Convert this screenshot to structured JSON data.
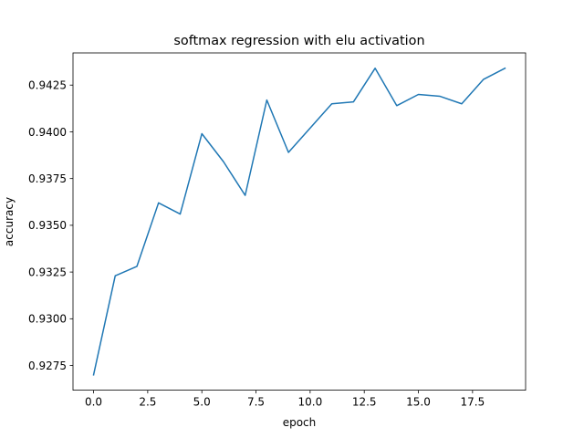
{
  "chart_data": {
    "type": "line",
    "title": "softmax regression with elu activation",
    "xlabel": "epoch",
    "ylabel": "accuracy",
    "xlim": [
      -0.95,
      19.95
    ],
    "ylim": [
      0.92618,
      0.94422
    ],
    "xticks": [
      0.0,
      2.5,
      5.0,
      7.5,
      10.0,
      12.5,
      15.0,
      17.5
    ],
    "xtick_labels": [
      "0.0",
      "2.5",
      "5.0",
      "7.5",
      "10.0",
      "12.5",
      "15.0",
      "17.5"
    ],
    "yticks": [
      0.9275,
      0.93,
      0.9325,
      0.935,
      0.9375,
      0.94,
      0.9425
    ],
    "ytick_labels": [
      "0.9275",
      "0.9300",
      "0.9325",
      "0.9350",
      "0.9375",
      "0.9400",
      "0.9425"
    ],
    "grid": false,
    "series": [
      {
        "color": "#1f77b4",
        "x": [
          0,
          1,
          2,
          3,
          4,
          5,
          6,
          7,
          8,
          9,
          10,
          11,
          12,
          13,
          14,
          15,
          16,
          17,
          18,
          19
        ],
        "values": [
          0.927,
          0.9323,
          0.9328,
          0.9362,
          0.9356,
          0.9399,
          0.9384,
          0.9366,
          0.9417,
          0.9389,
          0.9402,
          0.9415,
          0.9416,
          0.9434,
          0.9414,
          0.942,
          0.9419,
          0.9415,
          0.9428,
          0.9434
        ]
      }
    ]
  }
}
